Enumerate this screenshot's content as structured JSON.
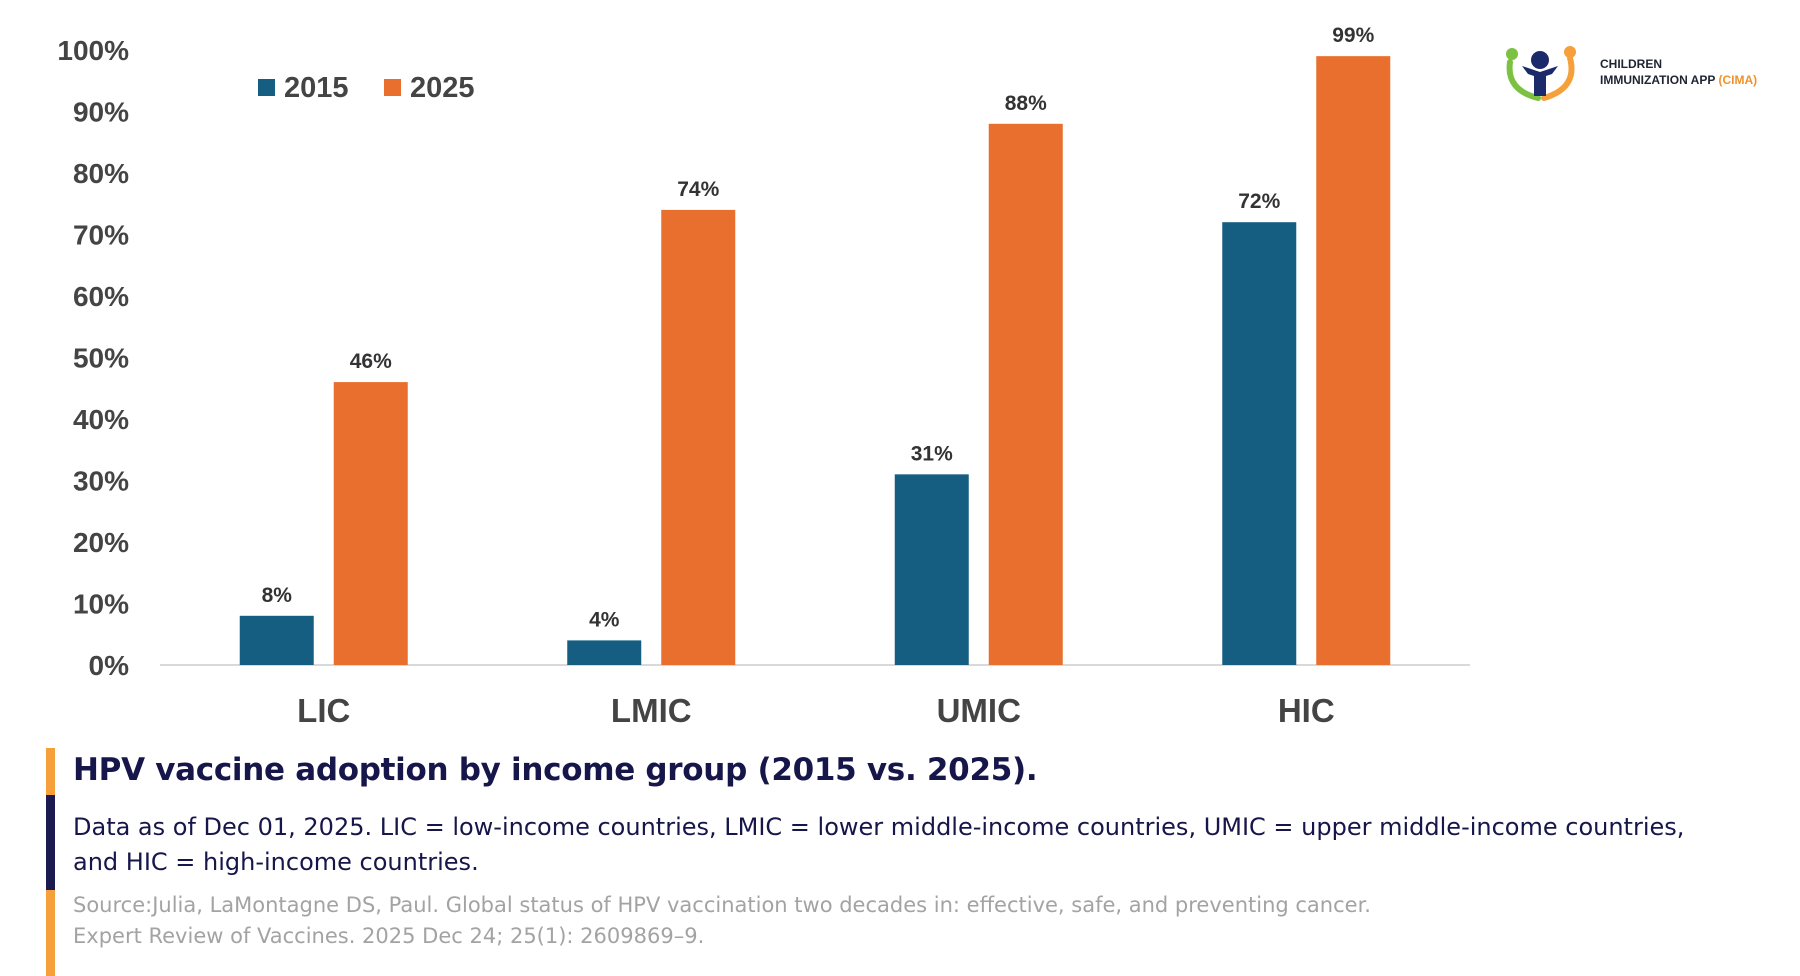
{
  "chart_data": {
    "type": "bar",
    "categories": [
      "LIC",
      "LMIC",
      "UMIC",
      "HIC"
    ],
    "series": [
      {
        "name": "2015",
        "values": [
          8,
          4,
          31,
          72
        ],
        "labels": [
          "8%",
          "4%",
          "31%",
          "72%"
        ],
        "color": "#155e82"
      },
      {
        "name": "2025",
        "values": [
          46,
          74,
          88,
          99
        ],
        "labels": [
          "46%",
          "74%",
          "88%",
          "99%"
        ],
        "color": "#e86f2e"
      }
    ],
    "ylim": [
      0,
      100
    ],
    "yticks": [
      "0%",
      "10%",
      "20%",
      "30%",
      "40%",
      "50%",
      "60%",
      "70%",
      "80%",
      "90%",
      "100%"
    ],
    "legend_position": "top-left",
    "grid": false
  },
  "logo": {
    "line1": "CHILDREN",
    "line2": "IMMUNIZATION APP",
    "line2_accent": "(CIMA)"
  },
  "caption": {
    "title": "HPV vaccine adoption by income group (2015 vs. 2025).",
    "description": "Data as of Dec 01, 2025. LIC = low-income countries, LMIC = lower middle-income countries, UMIC = upper middle-income countries, and HIC = high-income countries.",
    "source": "Source:Julia, LaMontagne DS, Paul. Global status of HPV vaccination two decades in: effective, safe, and preventing cancer. Expert Review of Vaccines. 2025 Dec 24; 25(1): 2609869–9."
  }
}
